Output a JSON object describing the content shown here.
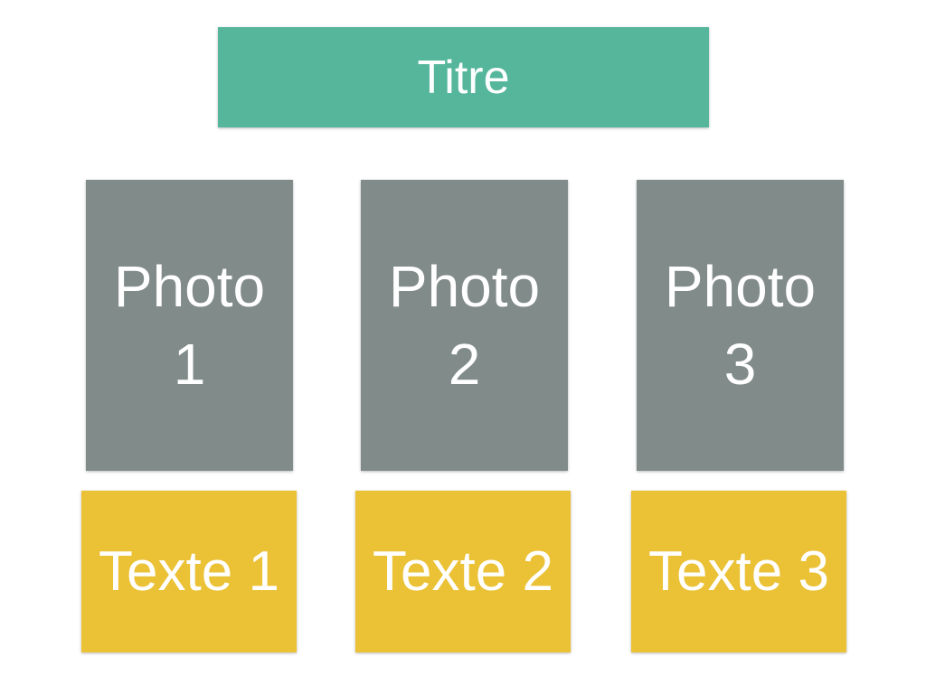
{
  "colors": {
    "title_bg": "#55b69b",
    "photo_bg": "#818b8a",
    "text_bg": "#ebc135",
    "label": "#ffffff"
  },
  "title": {
    "label": "Titre"
  },
  "photos": [
    {
      "line1": "Photo",
      "line2": "1"
    },
    {
      "line1": "Photo",
      "line2": "2"
    },
    {
      "line1": "Photo",
      "line2": "3"
    }
  ],
  "texts": [
    {
      "label": "Texte 1"
    },
    {
      "label": "Texte 2"
    },
    {
      "label": "Texte 3"
    }
  ]
}
